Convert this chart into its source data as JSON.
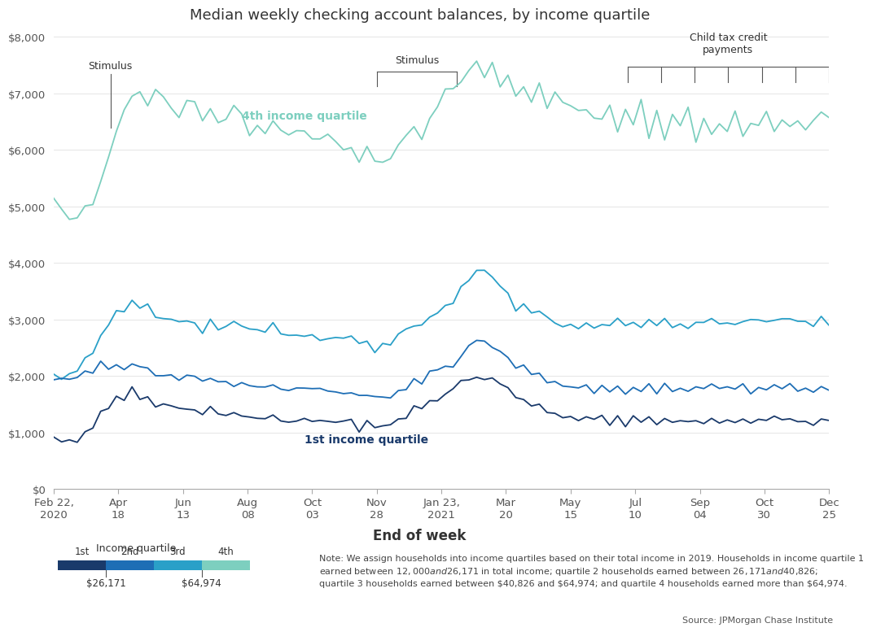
{
  "title": "Median weekly checking account balances, by income quartile",
  "xlabel": "End of week",
  "colors": {
    "q1": "#1a3a6b",
    "q2": "#1e6eb5",
    "q3": "#2aa0c8",
    "q4": "#7dcfbf"
  },
  "ytick_vals": [
    0,
    1000,
    2000,
    3000,
    4000,
    5000,
    6000,
    7000,
    8000
  ],
  "ytick_labels": [
    "$0",
    "$1,000",
    "$2,000",
    "$3,000",
    "$4,000",
    "$5,000",
    "$6,000",
    "$7,000",
    "$8,000"
  ],
  "xtick_labels": [
    "Feb 22,\n2020",
    "Apr\n18",
    "Jun\n13",
    "Aug\n08",
    "Oct\n03",
    "Nov\n28",
    "Jan 23,\n2021",
    "Mar\n20",
    "May\n15",
    "Jul\n10",
    "Sep\n04",
    "Oct\n30",
    "Dec\n25"
  ],
  "note_text": "Note: We assign households into income quartiles based on their total income in 2019. Households in income quartile 1\nearned between $12,000 and $26,171 in total income; quartile 2 households earned between $26,171 and $40,826;\nquartile 3 households earned between $40,826 and $64,974; and quartile 4 households earned more than $64,974.",
  "source_text": "Source: JPMorgan Chase Institute",
  "legend_title": "Income quartile",
  "legend_labels": [
    "1st",
    "2nd",
    "3rd",
    "4th"
  ],
  "legend_dollar1": "$26,171",
  "legend_dollar2": "$64,974",
  "bg": "#ffffff",
  "grid_color": "#e0e0e0",
  "text_color": "#333333",
  "label_q4": "4th income quartile",
  "label_q1": "1st income quartile",
  "ann_stim1": "Stimulus",
  "ann_stim2": "Stimulus",
  "ann_ctc": "Child tax credit\npayments"
}
